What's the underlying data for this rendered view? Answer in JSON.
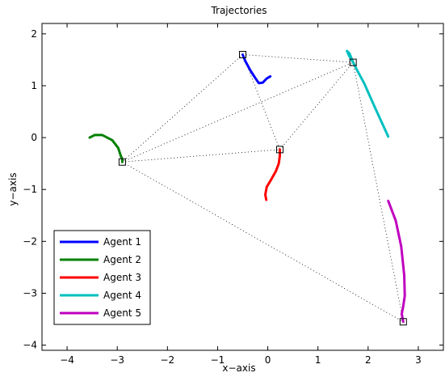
{
  "chart_data": {
    "type": "line",
    "title": "Trajectories",
    "xlabel": "x−axis",
    "ylabel": "y−axis",
    "xlim": [
      -4.5,
      3.5
    ],
    "ylim": [
      -4.1,
      2.2
    ],
    "xticks": [
      -4,
      -3,
      -2,
      -1,
      0,
      1,
      2,
      3
    ],
    "yticks": [
      -4,
      -3,
      -2,
      -1,
      0,
      1,
      2
    ],
    "xtick_labels": [
      "−4",
      "−3",
      "−2",
      "−1",
      "0",
      "1",
      "2",
      "3"
    ],
    "ytick_labels": [
      "−4",
      "−3",
      "−2",
      "−1",
      "0",
      "1",
      "2"
    ],
    "grid": false,
    "legend_position": "bottom-left",
    "series": [
      {
        "name": "Agent 1",
        "color": "#0000ff",
        "x": [
          0.05,
          -0.02,
          -0.1,
          -0.18,
          -0.25,
          -0.35,
          -0.45,
          -0.5
        ],
        "y": [
          1.18,
          1.14,
          1.06,
          1.05,
          1.15,
          1.3,
          1.48,
          1.6
        ]
      },
      {
        "name": "Agent 2",
        "color": "#008000",
        "x": [
          -3.55,
          -3.45,
          -3.3,
          -3.1,
          -2.98,
          -2.93,
          -2.9,
          -2.9
        ],
        "y": [
          0.0,
          0.05,
          0.05,
          -0.05,
          -0.2,
          -0.35,
          -0.42,
          -0.47
        ]
      },
      {
        "name": "Agent 3",
        "color": "#ff0000",
        "x": [
          -0.03,
          -0.05,
          -0.02,
          0.06,
          0.16,
          0.22,
          0.24,
          0.24
        ],
        "y": [
          -1.2,
          -1.1,
          -0.95,
          -0.82,
          -0.65,
          -0.5,
          -0.35,
          -0.23
        ]
      },
      {
        "name": "Agent 4",
        "color": "#00bfbf",
        "x": [
          2.4,
          2.15,
          1.92,
          1.78,
          1.7,
          1.62,
          1.58,
          1.63,
          1.7
        ],
        "y": [
          0.02,
          0.55,
          1.05,
          1.3,
          1.45,
          1.58,
          1.67,
          1.62,
          1.45
        ]
      },
      {
        "name": "Agent 5",
        "color": "#bf00bf",
        "x": [
          2.4,
          2.55,
          2.66,
          2.72,
          2.73,
          2.7,
          2.67,
          2.7
        ],
        "y": [
          -1.22,
          -1.6,
          -2.1,
          -2.65,
          -3.05,
          -3.25,
          -3.4,
          -3.55
        ]
      }
    ],
    "markers": {
      "shape": "square",
      "points": [
        {
          "x": -0.5,
          "y": 1.6
        },
        {
          "x": -2.9,
          "y": -0.47
        },
        {
          "x": 0.24,
          "y": -0.23
        },
        {
          "x": 1.7,
          "y": 1.45
        },
        {
          "x": 2.7,
          "y": -3.55
        }
      ]
    },
    "dotted_links": [
      [
        0,
        1
      ],
      [
        0,
        2
      ],
      [
        0,
        3
      ],
      [
        1,
        2
      ],
      [
        1,
        3
      ],
      [
        1,
        4
      ],
      [
        2,
        3
      ],
      [
        3,
        4
      ]
    ]
  }
}
